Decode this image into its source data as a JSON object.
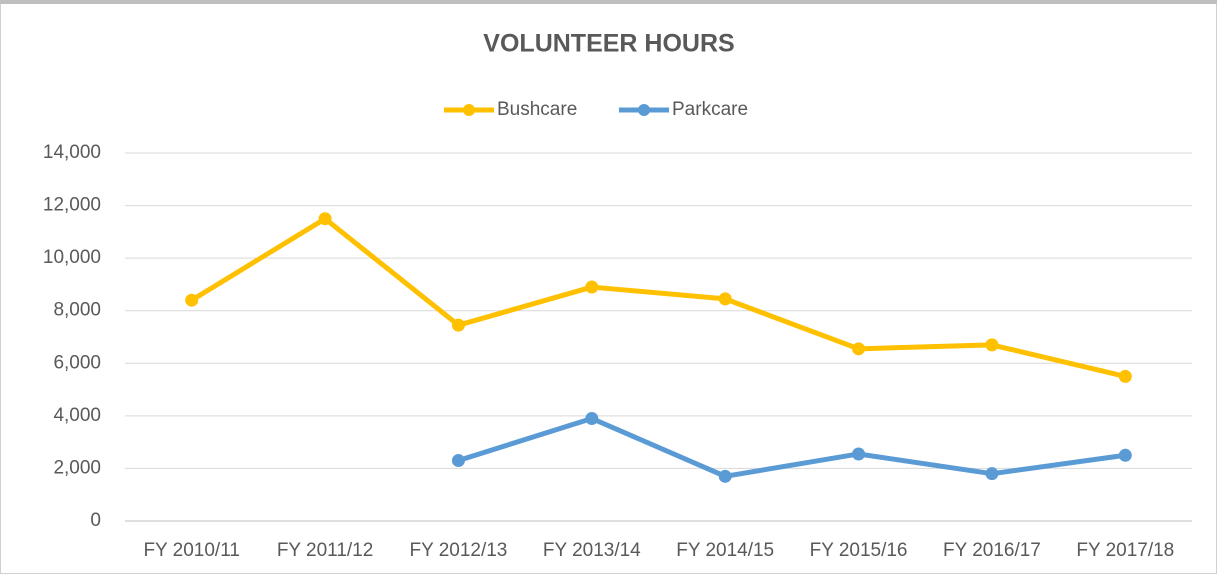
{
  "chart_data": {
    "type": "line",
    "title": "VOLUNTEER HOURS",
    "categories": [
      "FY 2010/11",
      "FY 2011/12",
      "FY 2012/13",
      "FY 2013/14",
      "FY 2014/15",
      "FY 2015/16",
      "FY 2016/17",
      "FY 2017/18"
    ],
    "series": [
      {
        "name": "Bushcare",
        "color": "#ffc000",
        "values": [
          8400,
          11500,
          7450,
          8900,
          8450,
          6550,
          6700,
          5500
        ]
      },
      {
        "name": "Parkcare",
        "color": "#5b9bd5",
        "values": [
          null,
          null,
          2300,
          3900,
          1700,
          2550,
          1800,
          2500
        ]
      }
    ],
    "ylim": [
      0,
      14000
    ],
    "yticks": [
      0,
      {
        "value": 2000,
        "label": "2,000"
      },
      {
        "value": 4000,
        "label": "4,000"
      },
      {
        "value": 6000,
        "label": "6,000"
      },
      {
        "value": 8000,
        "label": "8,000"
      },
      {
        "value": 10000,
        "label": "10,000"
      },
      {
        "value": 12000,
        "label": "12,000"
      },
      {
        "value": 14000,
        "label": "14,000"
      }
    ],
    "grid": true,
    "legend": "top"
  }
}
